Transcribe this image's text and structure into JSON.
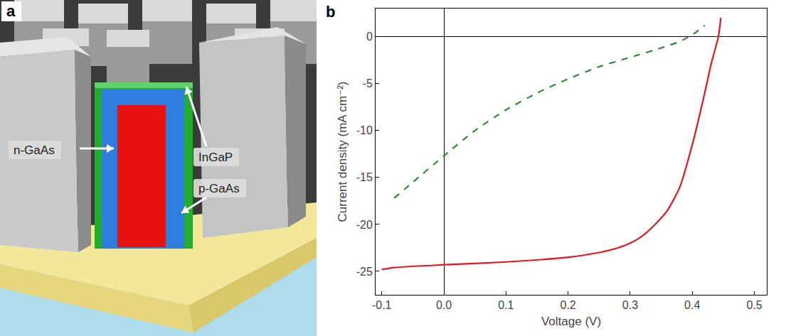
{
  "figure": {
    "panels": [
      {
        "letter": "a",
        "labels": [
          "n-GaAs",
          "InGaP",
          "p-GaAs"
        ]
      },
      {
        "letter": "b"
      }
    ]
  },
  "chart_data": {
    "type": "line",
    "xlabel": "Voltage (V)",
    "ylabel": "Current density (mA cm⁻²)",
    "xlim": [
      -0.11,
      0.52
    ],
    "xticks": [
      -0.1,
      {
        "value": 0,
        "label": "0.0"
      },
      0.1,
      0.2,
      0.3,
      0.4,
      0.5
    ],
    "ylim": [
      -27.5,
      3
    ],
    "yticks": [
      -25,
      -20,
      -15,
      -10,
      -5,
      0
    ],
    "grid": false,
    "series": [
      {
        "color": "#e8161c",
        "line_style": "solid",
        "x": [
          -0.1,
          -0.08,
          0,
          0.1,
          0.2,
          0.25,
          0.28,
          0.3,
          0.32,
          0.34,
          0.36,
          0.38,
          0.4,
          0.42,
          0.43,
          0.442,
          0.446
        ],
        "values": [
          -24.8,
          -24.6,
          -24.3,
          -24.0,
          -23.5,
          -23.0,
          -22.5,
          -22.0,
          -21.2,
          -20.0,
          -18.5,
          -16.0,
          -11.5,
          -6.0,
          -3.0,
          0,
          2
        ]
      },
      {
        "color": "#2e8b2e",
        "line_style": "dashed",
        "x": [
          -0.08,
          -0.05,
          0,
          0.05,
          0.1,
          0.15,
          0.2,
          0.25,
          0.3,
          0.35,
          0.38,
          0.4,
          0.42
        ],
        "values": [
          -17.2,
          -15.5,
          -12.7,
          -10.0,
          -7.8,
          -6.0,
          -4.5,
          -3.2,
          -2.2,
          -1.2,
          -0.5,
          0.2,
          1.2
        ]
      }
    ]
  }
}
